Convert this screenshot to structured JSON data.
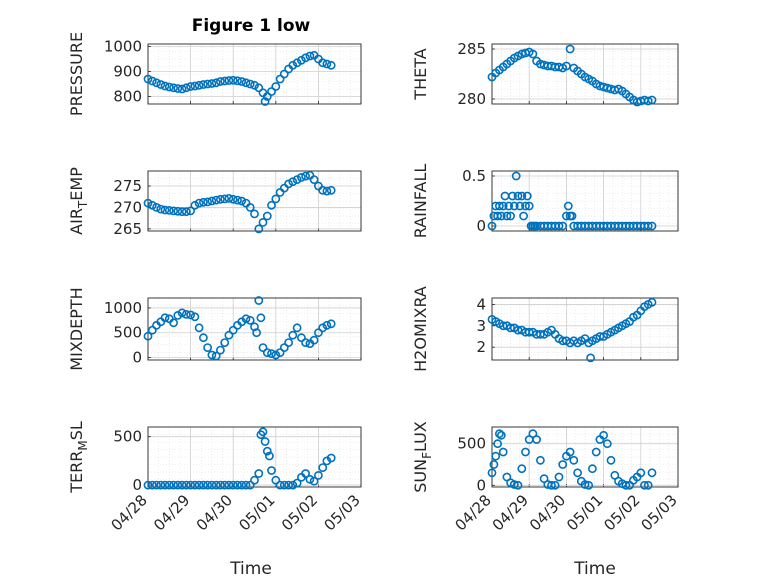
{
  "figure_title": "Figure 1 low",
  "colors": {
    "marker": "#0072BD",
    "axis": "#262626",
    "grid": "#dfdfdf"
  },
  "chart_data": [
    {
      "type": "scatter",
      "panel": "top-left",
      "ylabel": "PRESSURE",
      "ylim": [
        770,
        1010
      ],
      "yticks": [
        800,
        900,
        1000
      ],
      "ytick_labels": [
        "800",
        "900",
        "1000"
      ],
      "xlim": [
        0,
        5
      ],
      "grid": true,
      "x": [
        0.0,
        0.1,
        0.2,
        0.3,
        0.4,
        0.5,
        0.6,
        0.7,
        0.8,
        0.9,
        1.0,
        1.1,
        1.2,
        1.3,
        1.4,
        1.5,
        1.6,
        1.7,
        1.8,
        1.9,
        2.0,
        2.1,
        2.2,
        2.3,
        2.4,
        2.5,
        2.6,
        2.7,
        2.75,
        2.8,
        2.9,
        3.0,
        3.1,
        3.2,
        3.3,
        3.4,
        3.5,
        3.6,
        3.7,
        3.8,
        3.9,
        4.0,
        4.1,
        4.2,
        4.3
      ],
      "y": [
        870,
        862,
        855,
        848,
        842,
        838,
        835,
        832,
        830,
        835,
        840,
        842,
        845,
        848,
        850,
        852,
        855,
        860,
        862,
        864,
        865,
        863,
        860,
        855,
        850,
        845,
        835,
        815,
        780,
        800,
        820,
        840,
        870,
        890,
        910,
        925,
        935,
        945,
        955,
        962,
        965,
        950,
        935,
        930,
        925
      ]
    },
    {
      "type": "scatter",
      "panel": "top-right",
      "ylabel": "THETA",
      "ylim": [
        279.5,
        285.5
      ],
      "yticks": [
        280,
        285
      ],
      "ytick_labels": [
        "280",
        "285"
      ],
      "xlim": [
        0,
        5
      ],
      "grid": true,
      "x": [
        0.0,
        0.1,
        0.2,
        0.3,
        0.4,
        0.5,
        0.6,
        0.7,
        0.8,
        0.9,
        1.0,
        1.1,
        1.2,
        1.3,
        1.4,
        1.5,
        1.6,
        1.7,
        1.8,
        1.9,
        2.0,
        2.1,
        2.2,
        2.3,
        2.4,
        2.5,
        2.6,
        2.7,
        2.8,
        2.9,
        3.0,
        3.1,
        3.2,
        3.3,
        3.4,
        3.5,
        3.6,
        3.7,
        3.8,
        3.9,
        4.0,
        4.1,
        4.2,
        4.3
      ],
      "y": [
        282.2,
        282.6,
        282.9,
        283.2,
        283.5,
        283.8,
        284.1,
        284.3,
        284.5,
        284.6,
        284.7,
        284.5,
        283.8,
        283.5,
        283.4,
        283.3,
        283.3,
        283.2,
        283.2,
        283.1,
        283.3,
        285.0,
        283.1,
        282.8,
        282.5,
        282.2,
        282.0,
        281.8,
        281.5,
        281.3,
        281.2,
        281.1,
        281.0,
        280.9,
        281.0,
        280.8,
        280.5,
        280.2,
        279.9,
        279.7,
        279.8,
        279.9,
        279.8,
        279.9
      ]
    },
    {
      "type": "scatter",
      "panel": "second-left",
      "ylabel": "AIR_TEMP",
      "ylim": [
        264.5,
        278.5
      ],
      "yticks": [
        265,
        270,
        275
      ],
      "ytick_labels": [
        "265",
        "270",
        "275"
      ],
      "xlim": [
        0,
        5
      ],
      "grid": true,
      "x": [
        0.0,
        0.1,
        0.2,
        0.3,
        0.4,
        0.5,
        0.6,
        0.7,
        0.8,
        0.9,
        1.0,
        1.1,
        1.2,
        1.3,
        1.4,
        1.5,
        1.6,
        1.7,
        1.8,
        1.9,
        2.0,
        2.1,
        2.2,
        2.3,
        2.4,
        2.5,
        2.6,
        2.7,
        2.8,
        2.9,
        3.0,
        3.1,
        3.2,
        3.3,
        3.4,
        3.5,
        3.6,
        3.7,
        3.8,
        3.9,
        4.0,
        4.1,
        4.2,
        4.3
      ],
      "y": [
        271.0,
        270.5,
        270.0,
        269.6,
        269.4,
        269.3,
        269.2,
        269.1,
        269.0,
        269.0,
        269.2,
        270.5,
        271.0,
        271.2,
        271.3,
        271.5,
        271.7,
        271.9,
        272.0,
        272.1,
        271.9,
        271.7,
        271.5,
        271.0,
        270.0,
        268.5,
        265.0,
        266.5,
        268.0,
        270.5,
        272.0,
        273.5,
        274.5,
        275.5,
        276.0,
        276.5,
        277.0,
        277.3,
        277.5,
        276.5,
        275.0,
        274.0,
        273.8,
        274.0
      ]
    },
    {
      "type": "scatter",
      "panel": "second-right",
      "ylabel": "RAINFALL",
      "ylim": [
        -0.05,
        0.55
      ],
      "yticks": [
        0,
        0.5
      ],
      "ytick_labels": [
        "0",
        "0.5"
      ],
      "xlim": [
        0,
        5
      ],
      "grid": true,
      "x": [
        0.0,
        0.05,
        0.1,
        0.15,
        0.2,
        0.25,
        0.3,
        0.35,
        0.4,
        0.45,
        0.5,
        0.55,
        0.6,
        0.65,
        0.7,
        0.75,
        0.8,
        0.85,
        0.9,
        0.95,
        1.0,
        1.05,
        1.1,
        1.15,
        1.2,
        1.3,
        1.4,
        1.5,
        1.6,
        1.7,
        1.8,
        1.9,
        2.0,
        2.05,
        2.1,
        2.15,
        2.2,
        2.3,
        2.4,
        2.5,
        2.6,
        2.7,
        2.8,
        2.9,
        3.0,
        3.1,
        3.2,
        3.3,
        3.4,
        3.5,
        3.6,
        3.7,
        3.8,
        3.9,
        4.0,
        4.1,
        4.2,
        4.3
      ],
      "y": [
        0,
        0.1,
        0.2,
        0.1,
        0.2,
        0.1,
        0.2,
        0.3,
        0.1,
        0.2,
        0.1,
        0.3,
        0.2,
        0.5,
        0.3,
        0.2,
        0.3,
        0.1,
        0.2,
        0.3,
        0.2,
        0,
        0,
        0,
        0,
        0,
        0,
        0,
        0,
        0,
        0,
        0,
        0.1,
        0.2,
        0.1,
        0.1,
        0,
        0,
        0,
        0,
        0,
        0,
        0,
        0,
        0,
        0,
        0,
        0,
        0,
        0,
        0,
        0,
        0,
        0,
        0,
        0,
        0,
        0
      ]
    },
    {
      "type": "scatter",
      "panel": "third-left",
      "ylabel": "MIXDEPTH",
      "ylim": [
        -50,
        1200
      ],
      "yticks": [
        0,
        500,
        1000
      ],
      "ytick_labels": [
        "0",
        "500",
        "1000"
      ],
      "xlim": [
        0,
        5
      ],
      "grid": true,
      "x": [
        0.0,
        0.1,
        0.2,
        0.3,
        0.4,
        0.5,
        0.6,
        0.7,
        0.8,
        0.9,
        1.0,
        1.1,
        1.2,
        1.3,
        1.4,
        1.5,
        1.6,
        1.7,
        1.8,
        1.9,
        2.0,
        2.1,
        2.2,
        2.3,
        2.4,
        2.5,
        2.55,
        2.6,
        2.65,
        2.7,
        2.8,
        2.9,
        3.0,
        3.1,
        3.2,
        3.3,
        3.4,
        3.5,
        3.6,
        3.7,
        3.8,
        3.9,
        4.0,
        4.1,
        4.2,
        4.3
      ],
      "y": [
        430,
        550,
        650,
        720,
        800,
        780,
        700,
        850,
        900,
        870,
        860,
        820,
        600,
        400,
        200,
        50,
        30,
        150,
        300,
        450,
        550,
        650,
        720,
        780,
        750,
        620,
        500,
        1150,
        800,
        200,
        100,
        80,
        50,
        100,
        200,
        300,
        450,
        600,
        400,
        300,
        280,
        350,
        500,
        600,
        650,
        680
      ]
    },
    {
      "type": "scatter",
      "panel": "third-right",
      "ylabel": "H2OMIXRA",
      "ylim": [
        1.4,
        4.3
      ],
      "yticks": [
        2,
        3,
        4
      ],
      "ytick_labels": [
        "2",
        "3",
        "4"
      ],
      "xlim": [
        0,
        5
      ],
      "grid": true,
      "x": [
        0.0,
        0.1,
        0.2,
        0.3,
        0.4,
        0.5,
        0.6,
        0.7,
        0.8,
        0.9,
        1.0,
        1.1,
        1.2,
        1.3,
        1.4,
        1.5,
        1.6,
        1.7,
        1.8,
        1.9,
        2.0,
        2.1,
        2.2,
        2.3,
        2.4,
        2.5,
        2.6,
        2.65,
        2.7,
        2.8,
        2.9,
        3.0,
        3.1,
        3.2,
        3.3,
        3.4,
        3.5,
        3.6,
        3.7,
        3.8,
        3.9,
        4.0,
        4.1,
        4.2,
        4.3
      ],
      "y": [
        3.3,
        3.2,
        3.1,
        3.0,
        3.0,
        2.9,
        2.9,
        2.8,
        2.8,
        2.7,
        2.7,
        2.7,
        2.6,
        2.6,
        2.6,
        2.7,
        2.8,
        2.6,
        2.4,
        2.3,
        2.3,
        2.2,
        2.3,
        2.2,
        2.3,
        2.4,
        2.2,
        1.5,
        2.3,
        2.4,
        2.5,
        2.5,
        2.6,
        2.7,
        2.8,
        2.9,
        3.0,
        3.1,
        3.2,
        3.4,
        3.5,
        3.7,
        3.9,
        4.0,
        4.1
      ]
    },
    {
      "type": "scatter",
      "panel": "bottom-left",
      "ylabel": "TERR_MSL",
      "ylim": [
        -20,
        600
      ],
      "yticks": [
        0,
        500
      ],
      "ytick_labels": [
        "0",
        "500"
      ],
      "xlim": [
        0,
        5
      ],
      "grid": true,
      "x": [
        0.0,
        0.1,
        0.2,
        0.3,
        0.4,
        0.5,
        0.6,
        0.7,
        0.8,
        0.9,
        1.0,
        1.1,
        1.2,
        1.3,
        1.4,
        1.5,
        1.6,
        1.7,
        1.8,
        1.9,
        2.0,
        2.1,
        2.2,
        2.3,
        2.4,
        2.5,
        2.6,
        2.65,
        2.7,
        2.75,
        2.8,
        2.85,
        2.9,
        3.0,
        3.1,
        3.2,
        3.3,
        3.4,
        3.5,
        3.6,
        3.7,
        3.8,
        3.9,
        4.0,
        4.1,
        4.2,
        4.3
      ],
      "y": [
        0,
        0,
        0,
        0,
        0,
        0,
        0,
        0,
        0,
        0,
        0,
        0,
        0,
        0,
        0,
        0,
        0,
        0,
        0,
        0,
        0,
        0,
        0,
        0,
        0,
        50,
        120,
        520,
        550,
        450,
        350,
        300,
        150,
        50,
        0,
        0,
        0,
        0,
        20,
        80,
        120,
        60,
        40,
        100,
        180,
        250,
        280
      ]
    },
    {
      "type": "scatter",
      "panel": "bottom-right",
      "ylabel": "SUN_FLUX",
      "ylim": [
        -20,
        700
      ],
      "yticks": [
        0,
        500
      ],
      "ytick_labels": [
        "0",
        "500"
      ],
      "xlim": [
        0,
        5
      ],
      "grid": true,
      "x": [
        0.0,
        0.05,
        0.1,
        0.15,
        0.2,
        0.25,
        0.3,
        0.4,
        0.5,
        0.6,
        0.7,
        0.8,
        0.9,
        1.0,
        1.1,
        1.2,
        1.3,
        1.4,
        1.5,
        1.6,
        1.7,
        1.8,
        1.9,
        2.0,
        2.1,
        2.2,
        2.3,
        2.4,
        2.5,
        2.6,
        2.7,
        2.8,
        2.9,
        3.0,
        3.1,
        3.2,
        3.3,
        3.4,
        3.5,
        3.6,
        3.7,
        3.8,
        3.9,
        4.0,
        4.1,
        4.2,
        4.3
      ],
      "y": [
        150,
        250,
        350,
        500,
        620,
        600,
        400,
        100,
        30,
        10,
        0,
        200,
        400,
        550,
        620,
        550,
        300,
        80,
        10,
        0,
        0,
        100,
        250,
        350,
        400,
        300,
        150,
        50,
        10,
        0,
        200,
        400,
        550,
        600,
        500,
        300,
        120,
        50,
        20,
        0,
        0,
        60,
        100,
        150,
        0,
        0,
        150
      ]
    }
  ],
  "x_tick_labels": [
    "04/28",
    "04/29",
    "04/30",
    "05/01",
    "05/02",
    "05/03"
  ],
  "x_label_left": "Time",
  "x_label_right": "Time"
}
